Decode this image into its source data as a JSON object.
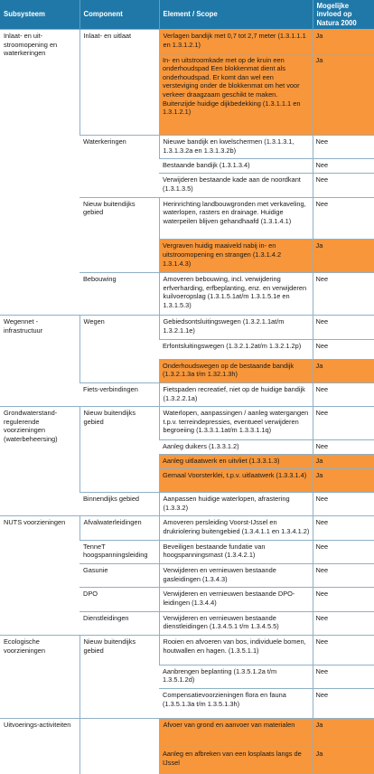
{
  "headers": {
    "col1": "Subsysteem",
    "col2": "Component",
    "col3": "Element / Scope",
    "col4": "Mogelijke invloed op Natura 2000"
  },
  "colors": {
    "header": "#1f78a8",
    "highlight": "#f7963a"
  },
  "subsystems": [
    {
      "name": "Inlaat- en uit-stroomopening en waterkeringen",
      "components": [
        {
          "name": "Inlaat- en uitlaat",
          "elements": [
            {
              "scope": "Verlagen bandijk met 0,7 tot 2,7 meter (1.3.1.1.1 en 1.3.1.2.1)",
              "effect": "Ja",
              "highlight": true
            },
            {
              "scope": "In- en uitstroomkade met op de kruin een onderhoudspad Een blokkenmat dient als onderhoudspad. Er komt dan wel een versteviging onder de blokkenmat om het voor verkeer draagzaam geschikt te maken. Buitenzijde huidige dijkbedekking (1.3.1.1.1 en 1.3.1.2.1)",
              "effect": "Ja",
              "highlight": true
            }
          ]
        },
        {
          "name": "Waterkeringen",
          "elements": [
            {
              "scope": "Nieuwe bandijk en kwelschermen (1.3.1.3.1, 1.3.1.3.2a en 1.3.1.3.2b)",
              "effect": "Nee",
              "highlight": false
            },
            {
              "scope": "Bestaande bandijk (1.3.1.3.4)",
              "effect": "Nee",
              "highlight": false
            },
            {
              "scope": "Verwijderen bestaande kade aan de noordkant (1.3.1.3.5)",
              "effect": "Nee",
              "highlight": false
            }
          ]
        },
        {
          "name": "Nieuw buitendijks gebied",
          "elements": [
            {
              "scope": "Herinrichting landbouwgronden met verkaveling, waterlopen, rasters en drainage. Huidige waterpeilen blijven gehandhaafd (1.3.1.4.1)",
              "effect": "Nee",
              "highlight": false
            },
            {
              "scope": "Vergraven huidig maaiveld nabij in- en uitstroomopening en strangen (1.3.1.4.2 1.3.1.4.3)",
              "effect": "Ja",
              "highlight": true
            }
          ]
        },
        {
          "name": "Bebouwing",
          "elements": [
            {
              "scope": "Amoveren bebouwing, incl. verwijdering erfverharding, erfbeplanting, enz. en verwijderen kuilvoeropslag (1.3.1.5.1at/m 1.3.1.5.1e en 1.3.1.5.3)",
              "effect": "Nee",
              "highlight": false
            }
          ]
        }
      ]
    },
    {
      "name": "Wegennet - infrastructuur",
      "components": [
        {
          "name": "Wegen",
          "elements": [
            {
              "scope": "Gebiedsontsluitingswegen (1.3.2.1.1at/m 1.3.2.1.1e)",
              "effect": "Nee",
              "highlight": false
            },
            {
              "scope": "Erfontsluitingswegen (1.3.2.1.2at/m 1.3.2.1.2p)",
              "effect": "Nee",
              "highlight": false
            },
            {
              "scope": "Onderhoudswegen op de bestaande bandijk (1.3.2.1.3a t/m 1.32.1.3h)",
              "effect": "Ja",
              "highlight": true
            }
          ]
        },
        {
          "name": "Fiets-verbindingen",
          "elements": [
            {
              "scope": "Fietspaden recreatief, niet op de huidige bandijk (1.3.2.2.1a)",
              "effect": "Nee",
              "highlight": false
            }
          ]
        }
      ]
    },
    {
      "name": "Grondwaterstand-regulerende voorzieningen (waterbeheersing)",
      "components": [
        {
          "name": "Nieuw buitendijks gebied",
          "elements": [
            {
              "scope": "Waterlopen, aanpassingen / aanleg watergangen t.p.v. terreindepressies, eventueel verwijderen begroeiing (1.3.3.1.1at/m 1.3.3.1.1q)",
              "effect": "Nee",
              "highlight": false
            },
            {
              "scope": "Aanleg duikers (1.3.3.1.2)",
              "effect": "Nee",
              "highlight": false
            },
            {
              "scope": "Aanleg uitlaatwerk en uitvliet (1.3.3.1.3)",
              "effect": "Ja",
              "highlight": true
            },
            {
              "scope": "Gemaal Voorsterklei, t.p.v. uitlaatwerk (1.3.3.1.4)",
              "effect": "Ja",
              "highlight": true
            }
          ]
        },
        {
          "name": "Binnendijks gebied",
          "elements": [
            {
              "scope": "Aanpassen huidige waterlopen, afrastering (1.3.3.2)",
              "effect": "Nee",
              "highlight": false
            }
          ]
        }
      ]
    },
    {
      "name": "NUTS voorzieningen",
      "components": [
        {
          "name": "Afvalwaterleidingen",
          "elements": [
            {
              "scope": "Amoveren persleiding Voorst-IJssel en drukriolering buitengebied (1.3.4.1.1 en 1.3.4.1.2)",
              "effect": "Nee",
              "highlight": false
            }
          ]
        },
        {
          "name": "TenneT hoogspanningsleiding",
          "elements": [
            {
              "scope": "Beveiligen bestaande fundatie van hoogspanningsmast (1.3.4.2.1)",
              "effect": "Nee",
              "highlight": false
            }
          ]
        },
        {
          "name": "Gasunie",
          "elements": [
            {
              "scope": "Verwijderen en vernieuwen bestaande gasleidingen (1.3.4.3)",
              "effect": "Nee",
              "highlight": false
            }
          ]
        },
        {
          "name": "DPO",
          "elements": [
            {
              "scope": "Verwijderen en vernieuwen bestaande DPO-leidingen (1.3.4.4)",
              "effect": "Nee",
              "highlight": false
            }
          ]
        },
        {
          "name": "Dienstleidingen",
          "elements": [
            {
              "scope": "Verwijderen en vernieuwen bestaande dienstleidingen (1.3.4.5.1 t/m 1.3.4.5.5)",
              "effect": "Nee",
              "highlight": false
            }
          ]
        }
      ]
    },
    {
      "name": "Ecologische voorzieningen",
      "components": [
        {
          "name": "Nieuw buitendijks gebied",
          "elements": [
            {
              "scope": "Rooien en afvoeren van bos, individuele bomen, houtwallen en hagen. (1.3.5.1.1)",
              "effect": "Nee",
              "highlight": false
            },
            {
              "scope": "Aanbrengen beplanting (1.3.5.1.2a t/m 1.3.5.1.2d)",
              "effect": "Nee",
              "highlight": false
            },
            {
              "scope": "Compensatievoorzieningen flora en fauna (1.3.5.1.3a t/m 1.3.5.1.3h)",
              "effect": "Nee",
              "highlight": false
            }
          ]
        }
      ]
    },
    {
      "name": "Uitvoerings-activiteiten",
      "components": [
        {
          "name": "",
          "elements": [
            {
              "scope": "Afvoer van grond en aanvoer van materialen",
              "effect": "Ja",
              "highlight": true
            },
            {
              "scope": "Aanleg en afbreken van een losplaats langs de IJssel",
              "effect": "Ja",
              "highlight": true
            }
          ]
        }
      ]
    }
  ]
}
